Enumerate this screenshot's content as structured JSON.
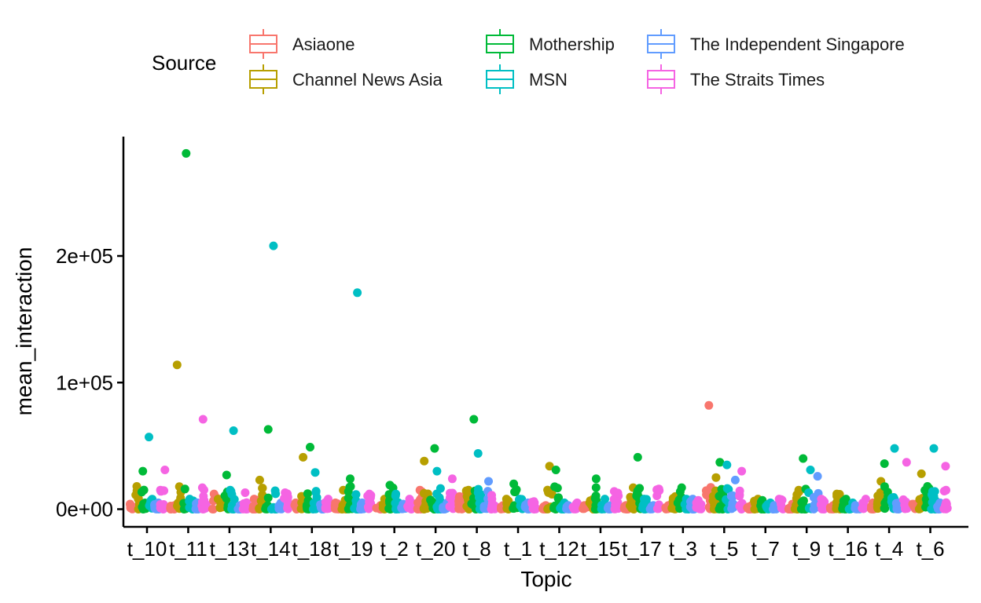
{
  "colors": {
    "Asiaone": "#F8766D",
    "Channel News Asia": "#B79F00",
    "Mothership": "#00BA38",
    "MSN": "#00BFC4",
    "The Independent Singapore": "#619CFF",
    "The Straits Times": "#F564E3"
  },
  "chart_data": {
    "type": "scatter",
    "subtype": "jittered strip plot by group",
    "title": "",
    "xlabel": "Topic",
    "ylabel": "mean_interaction",
    "ylim": [
      -12000,
      295000
    ],
    "yticks": [
      0,
      100000,
      200000
    ],
    "ytick_labels": [
      "0e+00",
      "1e+05",
      "2e+05"
    ],
    "grid": false,
    "categories": [
      "t_10",
      "t_11",
      "t_13",
      "t_14",
      "t_18",
      "t_19",
      "t_2",
      "t_20",
      "t_8",
      "t_1",
      "t_12",
      "t_15",
      "t_17",
      "t_3",
      "t_5",
      "t_7",
      "t_9",
      "t_16",
      "t_4",
      "t_6"
    ],
    "legend": {
      "title": "Source",
      "position": "top",
      "entries": [
        "Asiaone",
        "Channel News Asia",
        "Mothership",
        "MSN",
        "The Independent Singapore",
        "The Straits Times"
      ]
    },
    "series": [
      {
        "name": "Asiaone",
        "values": [
          4000,
          3000,
          12000,
          8000,
          5000,
          5000,
          3000,
          15000,
          10000,
          3000,
          3000,
          3000,
          3000,
          3000,
          82000,
          3000,
          4000,
          3000,
          5000,
          4000
        ]
      },
      {
        "name": "Channel News Asia",
        "values": [
          18000,
          114000,
          8000,
          23000,
          41000,
          15000,
          8000,
          38000,
          15000,
          8000,
          34000,
          8000,
          17000,
          10000,
          25000,
          8000,
          15000,
          12000,
          22000,
          28000
        ]
      },
      {
        "name": "Mothership",
        "values": [
          30000,
          281000,
          27000,
          63000,
          49000,
          24000,
          19000,
          48000,
          71000,
          20000,
          31000,
          24000,
          41000,
          17000,
          37000,
          7000,
          40000,
          8000,
          36000,
          18000
        ]
      },
      {
        "name": "MSN",
        "values": [
          57000,
          8000,
          62000,
          208000,
          29000,
          171000,
          12000,
          30000,
          44000,
          8000,
          5000,
          8000,
          8000,
          8000,
          35000,
          5000,
          31000,
          5000,
          48000,
          48000
        ]
      },
      {
        "name": "The Independent Singapore",
        "values": [
          5000,
          5000,
          3000,
          5000,
          4000,
          5000,
          4000,
          5000,
          22000,
          5000,
          3000,
          3000,
          3000,
          8000,
          23000,
          3000,
          26000,
          3000,
          5000,
          5000
        ]
      },
      {
        "name": "The Straits Times",
        "values": [
          31000,
          71000,
          13000,
          13000,
          8000,
          12000,
          8000,
          24000,
          11000,
          6000,
          5000,
          14000,
          16000,
          7000,
          30000,
          8000,
          8000,
          8000,
          37000,
          34000
        ]
      }
    ]
  }
}
